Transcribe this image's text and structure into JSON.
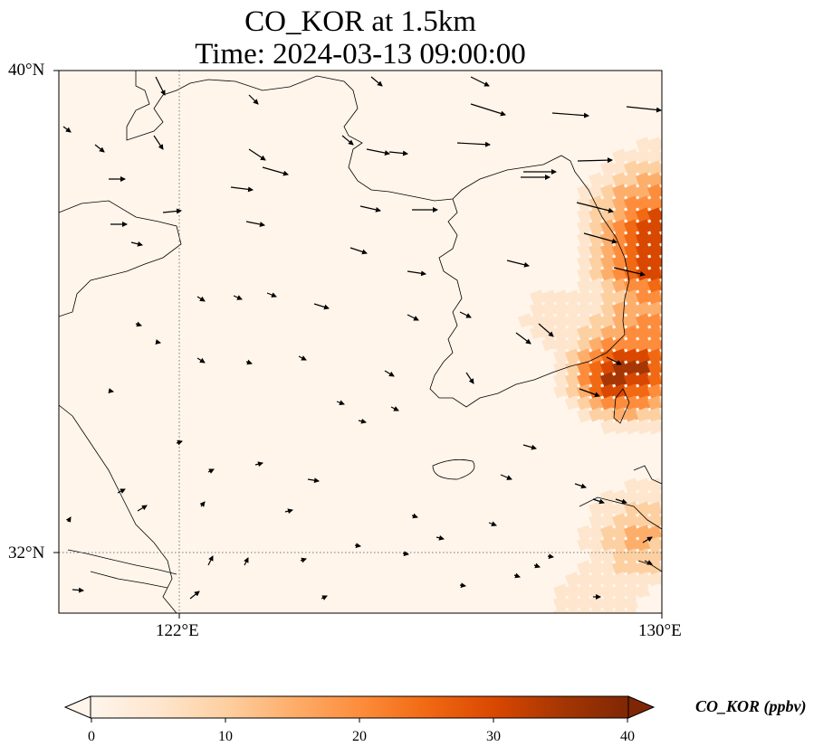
{
  "title_line1": "CO_KOR at 1.5km",
  "title_line2": "Time: 2024-03-13 09:00:00",
  "axes": {
    "lat_labels": [
      {
        "value": 40,
        "text": "40°N"
      },
      {
        "value": 32,
        "text": "32°N"
      }
    ],
    "lon_labels": [
      {
        "value": 122,
        "text": "122°E"
      },
      {
        "value": 130,
        "text": "130°E"
      }
    ],
    "lon_range": [
      120,
      130
    ],
    "lat_range": [
      31,
      40
    ],
    "gridlines": "dotted"
  },
  "colorbar": {
    "title": "CO_KOR (ppbv)",
    "ticks": [
      "0",
      "10",
      "20",
      "30",
      "40"
    ],
    "range": [
      0,
      40
    ],
    "extend": "both",
    "colormap": [
      "#fff5eb",
      "#fee6ce",
      "#fdd0a2",
      "#fdae6b",
      "#fd8d3c",
      "#f16913",
      "#d94801",
      "#a63603",
      "#7f2704"
    ]
  },
  "colors": {
    "frame": "#000000",
    "coast": "#000000",
    "wind_arrow": "#000000",
    "background": "#fff5eb"
  }
}
